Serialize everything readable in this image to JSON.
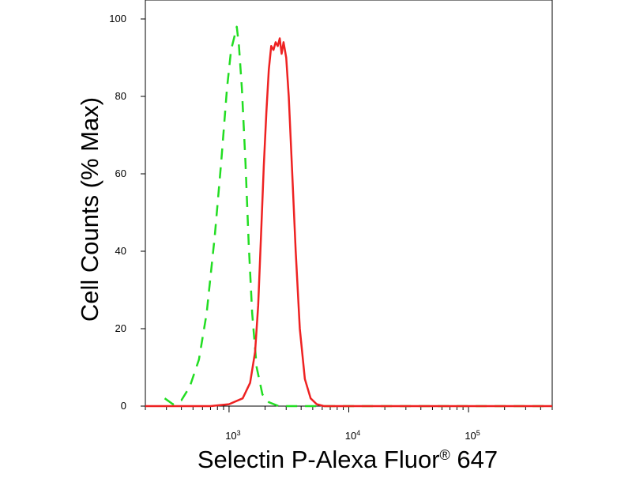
{
  "chart_data": {
    "type": "line",
    "xlabel": "Selectin P-Alexa Fluor",
    "xlabel_superscript": "®",
    "xlabel_suffix": " 647",
    "ylabel": "Cell Counts (% Max)",
    "x_scale": "log",
    "xlim": [
      200,
      500000
    ],
    "ylim": [
      0,
      100
    ],
    "y_ticks": [
      "0",
      "20",
      "40",
      "60",
      "80",
      "100"
    ],
    "x_ticks": [
      {
        "base": "10",
        "exp": "3",
        "value": 1000
      },
      {
        "base": "10",
        "exp": "4",
        "value": 10000
      },
      {
        "base": "10",
        "exp": "5",
        "value": 100000
      }
    ],
    "grid": false,
    "legend": "none",
    "series": [
      {
        "color": "#22dd22",
        "dash": "dashed",
        "x": [
          290,
          340,
          400,
          470,
          560,
          650,
          760,
          860,
          960,
          1040,
          1120,
          1160,
          1210,
          1280,
          1370,
          1460,
          1560,
          1700,
          1900,
          2150,
          2600,
          4000,
          500000
        ],
        "y": [
          2,
          0.5,
          1.5,
          5,
          12,
          24,
          44,
          63,
          82,
          92,
          96,
          98,
          93,
          82,
          63,
          42,
          24,
          10,
          3,
          1,
          0,
          0,
          0
        ]
      },
      {
        "color": "#ee2222",
        "dash": "solid",
        "x": [
          200,
          700,
          1000,
          1300,
          1500,
          1650,
          1750,
          1850,
          1950,
          2050,
          2150,
          2250,
          2350,
          2450,
          2550,
          2650,
          2750,
          2850,
          3000,
          3150,
          3350,
          3600,
          3900,
          4300,
          4800,
          5400,
          6200,
          500000
        ],
        "y": [
          0,
          0,
          0.5,
          2,
          6,
          14,
          26,
          44,
          62,
          76,
          87,
          93,
          92,
          94,
          93,
          95,
          91,
          94,
          90,
          80,
          62,
          40,
          20,
          7,
          2,
          0.5,
          0,
          0
        ]
      }
    ]
  }
}
